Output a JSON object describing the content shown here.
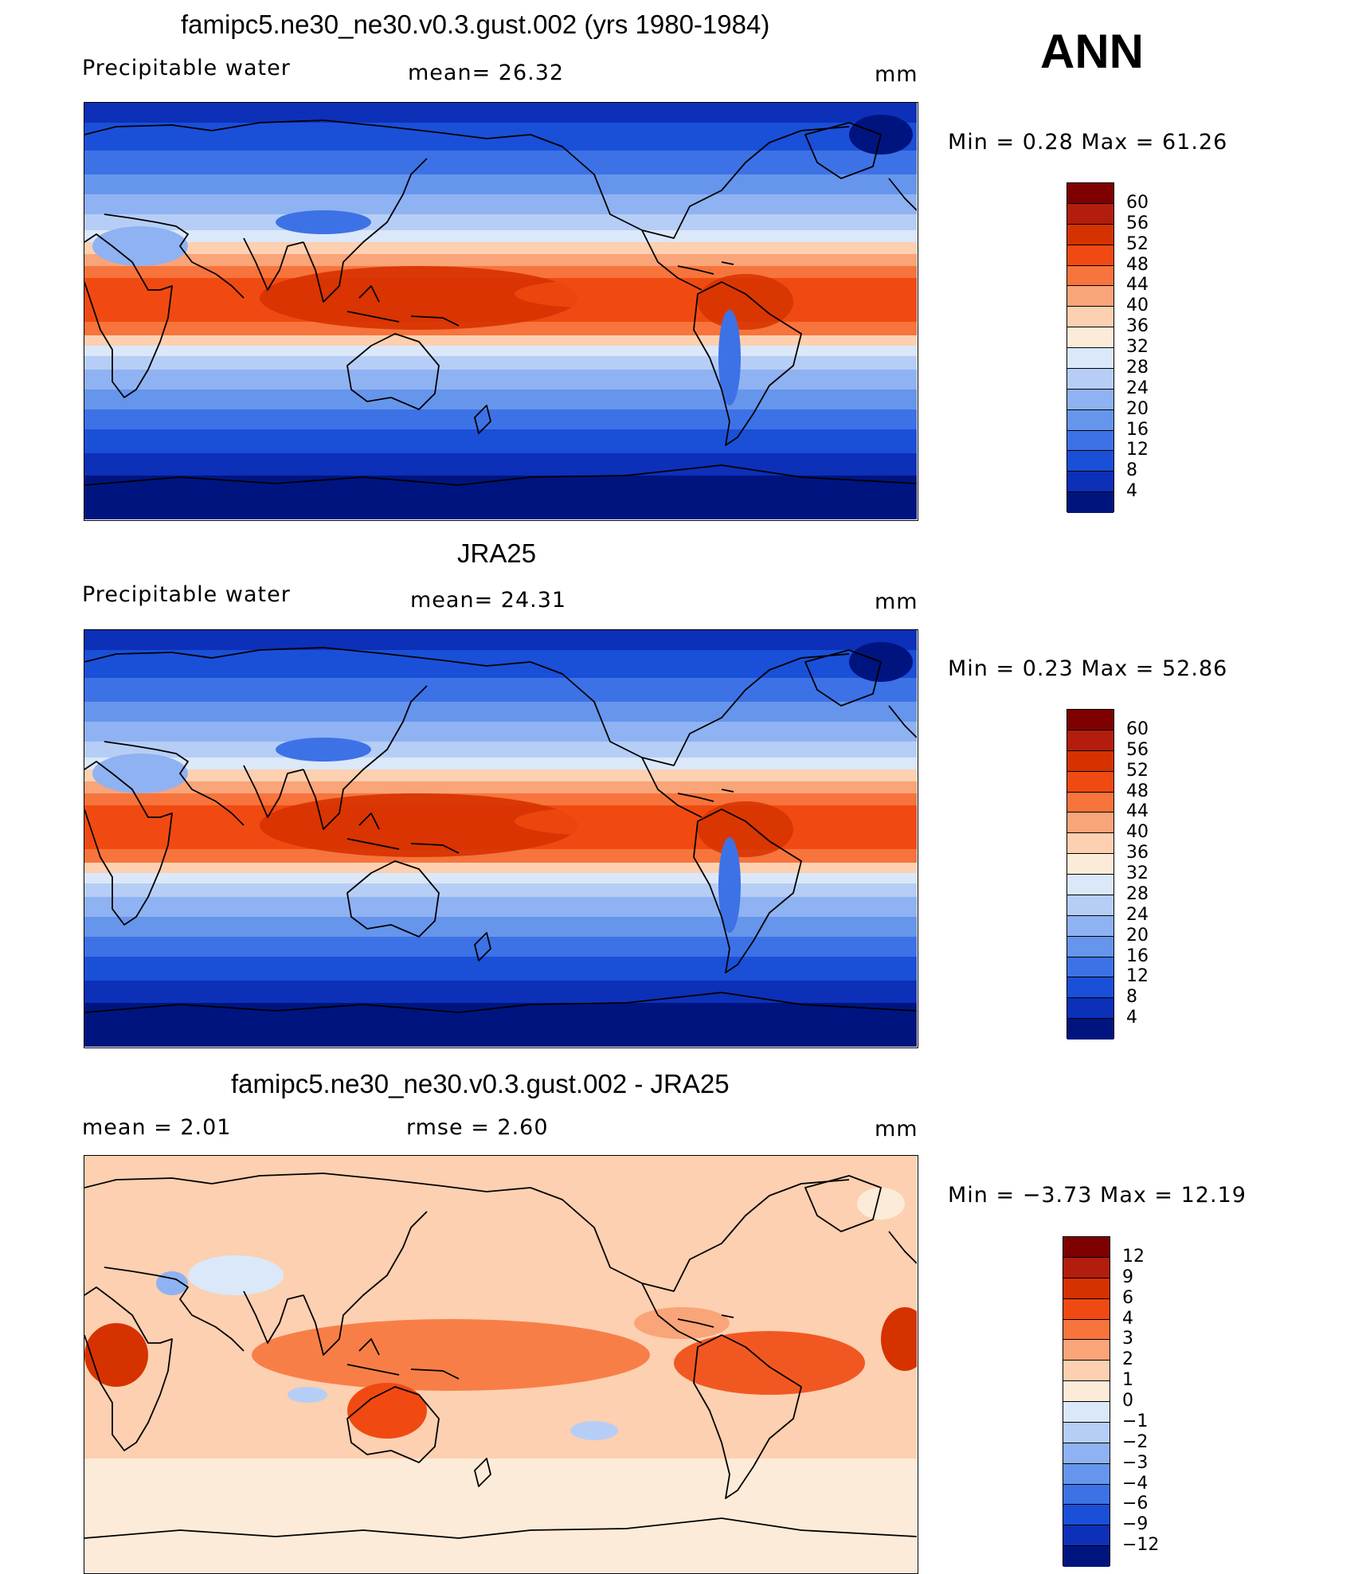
{
  "season": "ANN",
  "panels": [
    {
      "id": "model",
      "title": "famipc5.ne30_ne30.v0.3.gust.002 (yrs 1980-1984)",
      "left_label": "Precipitable  water",
      "center_label": "mean=   26.32",
      "units": "mm",
      "minmax": "Min  =     0.28  Max  =    61.26",
      "colorbar": {
        "labels": [
          "60",
          "56",
          "52",
          "48",
          "44",
          "40",
          "36",
          "32",
          "28",
          "24",
          "20",
          "16",
          "12",
          "8",
          "4"
        ],
        "colors": [
          "#7f0000",
          "#b21d0d",
          "#d63200",
          "#f04a12",
          "#f7743c",
          "#f9a479",
          "#fcd0b0",
          "#fdebd9",
          "#dbe8f9",
          "#b6cef6",
          "#8fb2f2",
          "#6695ec",
          "#3d72e6",
          "#1a4fd8",
          "#0c30b8",
          "#001480"
        ]
      }
    },
    {
      "id": "obs",
      "title": "JRA25",
      "left_label": "Precipitable  water",
      "center_label": "mean=   24.31",
      "units": "mm",
      "minmax": "Min  =     0.23  Max  =    52.86",
      "colorbar": {
        "labels": [
          "60",
          "56",
          "52",
          "48",
          "44",
          "40",
          "36",
          "32",
          "28",
          "24",
          "20",
          "16",
          "12",
          "8",
          "4"
        ],
        "colors": [
          "#7f0000",
          "#b21d0d",
          "#d63200",
          "#f04a12",
          "#f7743c",
          "#f9a479",
          "#fcd0b0",
          "#fdebd9",
          "#dbe8f9",
          "#b6cef6",
          "#8fb2f2",
          "#6695ec",
          "#3d72e6",
          "#1a4fd8",
          "#0c30b8",
          "#001480"
        ]
      }
    },
    {
      "id": "diff",
      "title": "famipc5.ne30_ne30.v0.3.gust.002 - JRA25",
      "left_label": "mean  =      2.01",
      "center_label": "rmse  =     2.60",
      "units": "mm",
      "minmax": "Min  =   −3.73  Max  =    12.19",
      "colorbar": {
        "labels": [
          "12",
          "9",
          "6",
          "4",
          "3",
          "2",
          "1",
          "0",
          "−1",
          "−2",
          "−3",
          "−4",
          "−6",
          "−9",
          "−12"
        ],
        "colors": [
          "#7f0000",
          "#b21d0d",
          "#d63200",
          "#f04a12",
          "#f7743c",
          "#f9a479",
          "#fcd0b0",
          "#fdebd9",
          "#dbe8f9",
          "#b6cef6",
          "#8fb2f2",
          "#6695ec",
          "#3d72e6",
          "#1a4fd8",
          "#0c30b8",
          "#001480"
        ]
      }
    }
  ]
}
